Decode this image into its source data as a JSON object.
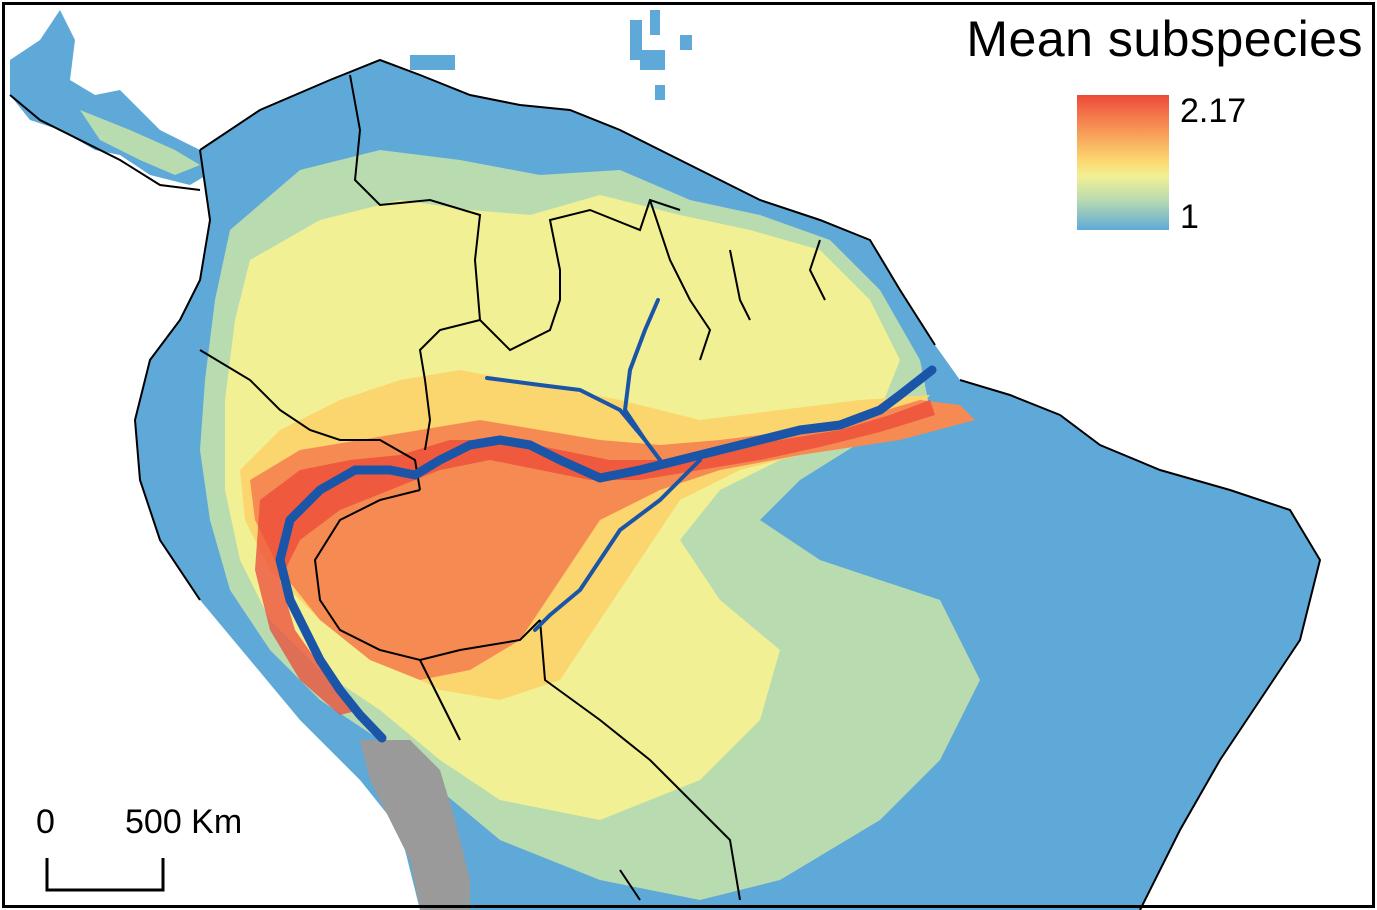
{
  "legend": {
    "title": "Mean subspecies",
    "max_label": "2.17",
    "min_label": "1",
    "colors": [
      "#ec4a3a",
      "#f58b52",
      "#fbd66e",
      "#f2f094",
      "#b9dbb0",
      "#5fa9d8"
    ]
  },
  "scale": {
    "zero_label": "0",
    "distance_label": "500 Km"
  },
  "palette": {
    "ocean": "#ffffff",
    "low": "#5fa9d8",
    "mid_low": "#b9dbb0",
    "mid": "#f2f094",
    "mid_high": "#fbd66e",
    "high": "#f58b52",
    "peak": "#ec4a3a",
    "andes_gray": "#9a9a9a",
    "river": "#1b55a8",
    "border": "#000000"
  }
}
